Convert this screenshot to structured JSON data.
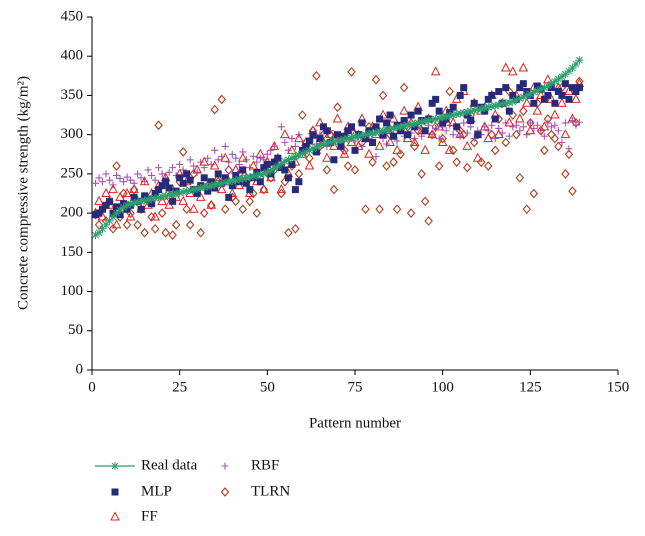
{
  "chart_data": {
    "type": "scatter",
    "xlabel": "Pattern number",
    "ylabel": "Concrete compressive strength (kg/m²)",
    "xlim": [
      0,
      150
    ],
    "xticks": [
      0,
      25,
      50,
      75,
      100,
      125,
      150
    ],
    "ylim": [
      0,
      450
    ],
    "yticks": [
      0,
      50,
      100,
      150,
      200,
      250,
      300,
      350,
      400,
      450
    ],
    "x": [
      1,
      2,
      3,
      4,
      5,
      6,
      7,
      8,
      9,
      10,
      11,
      12,
      13,
      14,
      15,
      16,
      17,
      18,
      19,
      20,
      21,
      22,
      23,
      24,
      25,
      26,
      27,
      28,
      29,
      30,
      31,
      32,
      33,
      34,
      35,
      36,
      37,
      38,
      39,
      40,
      41,
      42,
      43,
      44,
      45,
      46,
      47,
      48,
      49,
      50,
      51,
      52,
      53,
      54,
      55,
      56,
      57,
      58,
      59,
      60,
      61,
      62,
      63,
      64,
      65,
      66,
      67,
      68,
      69,
      70,
      71,
      72,
      73,
      74,
      75,
      76,
      77,
      78,
      79,
      80,
      81,
      82,
      83,
      84,
      85,
      86,
      87,
      88,
      89,
      90,
      91,
      92,
      93,
      94,
      95,
      96,
      97,
      98,
      99,
      100,
      101,
      102,
      103,
      104,
      105,
      106,
      107,
      108,
      109,
      110,
      111,
      112,
      113,
      114,
      115,
      116,
      117,
      118,
      119,
      120,
      121,
      122,
      123,
      124,
      125,
      126,
      127,
      128,
      129,
      130,
      131,
      132,
      133,
      134,
      135,
      136,
      137,
      138,
      139
    ],
    "series": [
      {
        "name": "Real data",
        "color": "#2e9e6e",
        "marker": "star",
        "line": true,
        "values": [
          172,
          175,
          180,
          185,
          190,
          195,
          200,
          204,
          207,
          210,
          212,
          213,
          214,
          215,
          216,
          217,
          218,
          219,
          220,
          221,
          222,
          223,
          224,
          225,
          226,
          227,
          228,
          229,
          230,
          231,
          232,
          233,
          234,
          235,
          236,
          237,
          238,
          239,
          240,
          241,
          242,
          243,
          244,
          245,
          246,
          247,
          248,
          249,
          250,
          252,
          254,
          257,
          260,
          263,
          266,
          268,
          270,
          272,
          274,
          276,
          278,
          280,
          282,
          284,
          286,
          288,
          289,
          290,
          291,
          292,
          293,
          294,
          295,
          296,
          297,
          298,
          299,
          300,
          301,
          302,
          303,
          304,
          305,
          306,
          307,
          308,
          309,
          310,
          311,
          312,
          313,
          314,
          315,
          316,
          317,
          318,
          319,
          320,
          321,
          322,
          323,
          324,
          325,
          326,
          327,
          328,
          329,
          330,
          331,
          332,
          333,
          334,
          335,
          336,
          337,
          338,
          339,
          340,
          341,
          342,
          344,
          346,
          348,
          350,
          352,
          354,
          356,
          358,
          360,
          362,
          365,
          368,
          371,
          374,
          377,
          381,
          385,
          390,
          395
        ]
      },
      {
        "name": "MLP",
        "color": "#262a78",
        "marker": "square",
        "values": [
          198,
          200,
          205,
          210,
          215,
          200,
          208,
          198,
          212,
          205,
          210,
          220,
          215,
          205,
          222,
          218,
          212,
          225,
          230,
          235,
          240,
          232,
          215,
          228,
          245,
          238,
          250,
          242,
          230,
          225,
          235,
          245,
          228,
          240,
          232,
          250,
          238,
          245,
          220,
          235,
          248,
          240,
          255,
          238,
          230,
          245,
          252,
          240,
          258,
          262,
          250,
          265,
          270,
          258,
          255,
          245,
          262,
          230,
          240,
          280,
          285,
          292,
          300,
          278,
          295,
          310,
          305,
          290,
          268,
          300,
          285,
          298,
          305,
          310,
          280,
          300,
          315,
          295,
          305,
          290,
          310,
          320,
          300,
          315,
          325,
          298,
          312,
          305,
          318,
          300,
          325,
          310,
          330,
          318,
          305,
          320,
          340,
          345,
          330,
          315,
          320,
          328,
          335,
          310,
          350,
          360,
          325,
          318,
          340,
          300,
          335,
          330,
          345,
          350,
          320,
          355,
          340,
          360,
          330,
          350,
          345,
          360,
          365,
          355,
          350,
          340,
          362,
          358,
          345,
          350,
          360,
          340,
          355,
          350,
          365,
          345,
          360,
          355,
          360
        ]
      },
      {
        "name": "FF",
        "color": "#e02424",
        "marker": "triangle",
        "values": [
          200,
          215,
          195,
          225,
          210,
          230,
          185,
          220,
          205,
          225,
          195,
          230,
          215,
          205,
          240,
          210,
          225,
          195,
          235,
          215,
          245,
          210,
          230,
          220,
          250,
          215,
          240,
          225,
          205,
          255,
          220,
          265,
          235,
          210,
          260,
          245,
          230,
          270,
          240,
          225,
          255,
          235,
          270,
          245,
          225,
          260,
          240,
          275,
          230,
          265,
          245,
          285,
          260,
          230,
          300,
          250,
          280,
          265,
          295,
          275,
          290,
          260,
          305,
          280,
          315,
          290,
          270,
          300,
          285,
          320,
          295,
          275,
          310,
          290,
          300,
          285,
          320,
          295,
          275,
          310,
          300,
          285,
          325,
          305,
          290,
          320,
          280,
          310,
          330,
          295,
          315,
          290,
          335,
          305,
          280,
          320,
          300,
          380,
          310,
          290,
          330,
          280,
          315,
          345,
          300,
          355,
          285,
          320,
          340,
          270,
          330,
          310,
          295,
          350,
          325,
          300,
          340,
          385,
          315,
          380,
          350,
          320,
          385,
          340,
          305,
          360,
          330,
          350,
          310,
          370,
          345,
          325,
          360,
          340,
          300,
          355,
          320,
          345,
          365
        ]
      },
      {
        "name": "RBF",
        "color": "#a855b5",
        "marker": "plus",
        "values": [
          238,
          245,
          240,
          250,
          242,
          236,
          248,
          244,
          240,
          246,
          242,
          238,
          250,
          245,
          240,
          255,
          248,
          242,
          258,
          250,
          245,
          252,
          258,
          248,
          262,
          255,
          250,
          268,
          260,
          252,
          265,
          258,
          270,
          262,
          280,
          268,
          272,
          285,
          265,
          275,
          270,
          262,
          278,
          268,
          258,
          272,
          265,
          270,
          268,
          275,
          280,
          285,
          272,
          310,
          290,
          280,
          295,
          285,
          300,
          278,
          285,
          290,
          295,
          288,
          300,
          292,
          285,
          305,
          295,
          298,
          290,
          300,
          295,
          305,
          292,
          298,
          285,
          302,
          295,
          300,
          272,
          305,
          295,
          288,
          310,
          300,
          292,
          305,
          298,
          315,
          302,
          295,
          310,
          298,
          305,
          312,
          300,
          308,
          295,
          310,
          305,
          312,
          300,
          308,
          298,
          315,
          302,
          310,
          295,
          305,
          300,
          310,
          305,
          312,
          295,
          308,
          302,
          315,
          298,
          310,
          312,
          305,
          310,
          300,
          315,
          308,
          312,
          305,
          298,
          315,
          310,
          312,
          305,
          290,
          315,
          282,
          318,
          312,
          316
        ]
      },
      {
        "name": "TLRN",
        "color": "#b03c1c",
        "marker": "diamond",
        "values": [
          198,
          185,
          205,
          190,
          215,
          180,
          260,
          195,
          225,
          185,
          200,
          230,
          185,
          205,
          175,
          215,
          195,
          180,
          312,
          200,
          175,
          220,
          172,
          185,
          240,
          278,
          205,
          185,
          250,
          230,
          175,
          200,
          235,
          210,
          332,
          240,
          345,
          205,
          255,
          220,
          215,
          250,
          205,
          240,
          215,
          225,
          200,
          245,
          230,
          252,
          245,
          255,
          270,
          225,
          240,
          175,
          260,
          180,
          250,
          325,
          290,
          270,
          305,
          375,
          285,
          300,
          255,
          300,
          230,
          335,
          295,
          280,
          260,
          380,
          255,
          300,
          290,
          205,
          310,
          265,
          370,
          205,
          350,
          260,
          300,
          265,
          205,
          275,
          360,
          310,
          200,
          285,
          305,
          250,
          215,
          190,
          300,
          310,
          260,
          295,
          320,
          355,
          280,
          265,
          305,
          300,
          258,
          325,
          290,
          300,
          265,
          335,
          260,
          300,
          280,
          320,
          340,
          290,
          355,
          325,
          300,
          245,
          330,
          205,
          315,
          225,
          340,
          305,
          280,
          320,
          300,
          295,
          285,
          360,
          250,
          275,
          228,
          315,
          368
        ]
      }
    ]
  }
}
